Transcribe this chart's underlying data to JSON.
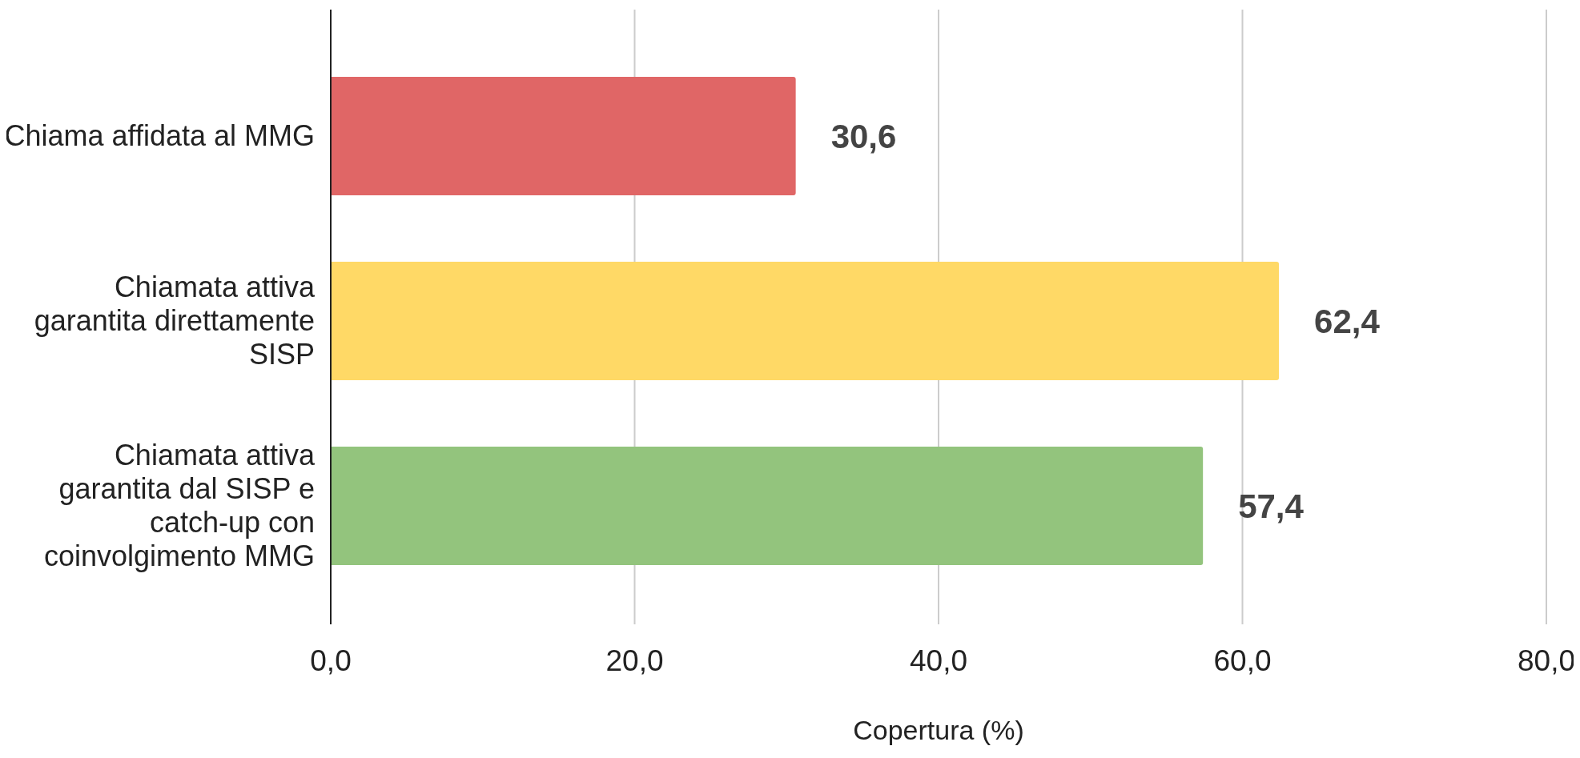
{
  "chart_data": {
    "type": "bar",
    "orientation": "horizontal",
    "xlabel": "Copertura (%)",
    "categories": [
      "Chiama affidata al MMG",
      "Chiamata attiva garantita direttamente SISP",
      "Chiamata attiva garantita dal SISP e catch-up con coinvolgimento MMG"
    ],
    "values": [
      30.6,
      62.4,
      57.4
    ],
    "colors": [
      "#e06666",
      "#ffd966",
      "#93c47d"
    ],
    "value_labels": [
      "30,6",
      "62,4",
      "57,4"
    ],
    "xlim": [
      0,
      80
    ],
    "xticks": [
      {
        "value": 0,
        "label": "0,0"
      },
      {
        "value": 20,
        "label": "20,0"
      },
      {
        "value": 40,
        "label": "40,0"
      },
      {
        "value": 60,
        "label": "60,0"
      },
      {
        "value": 80,
        "label": "80,0"
      }
    ],
    "grid": "x"
  }
}
